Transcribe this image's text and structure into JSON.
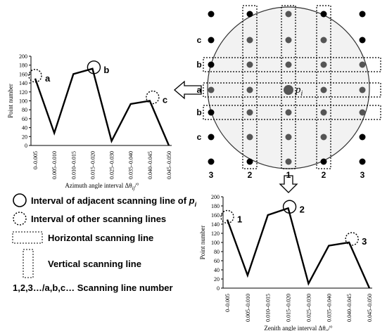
{
  "chart_data": [
    {
      "type": "line",
      "y_label": "Point number",
      "x_label": "Azimuth angle interval Δθ",
      "x_label_sub": "ij",
      "x_label_suffix": "/°",
      "categories": [
        "0–0.005",
        "0.005–0.010",
        "0.010–0.015",
        "0.015–0.020",
        "0.025–0.030",
        "0.035–0.040",
        "0.040–0.045",
        "0.045–0.050"
      ],
      "values": [
        150,
        28,
        160,
        172,
        10,
        93,
        100,
        0
      ],
      "color": "#000000",
      "ylim": [
        0,
        200
      ],
      "yticks": [
        0,
        20,
        40,
        60,
        80,
        100,
        120,
        140,
        160,
        180,
        200
      ],
      "annotations": [
        {
          "text": "a",
          "index": 0,
          "style": "dotted"
        },
        {
          "text": "b",
          "index": 3,
          "style": "solid"
        },
        {
          "text": "c",
          "index": 6,
          "style": "dotted"
        }
      ]
    },
    {
      "type": "line",
      "y_label": "Point number",
      "x_label": "Zenith angle interval Δθ",
      "x_label_sub": "ij",
      "x_label_suffix": "/°",
      "categories": [
        "0–0.005",
        "0.005–0.010",
        "0.010–0.015",
        "0.015–0.020",
        "0.025–0.030",
        "0.035–0.040",
        "0.040–0.045",
        "0.045–0.050"
      ],
      "values": [
        150,
        28,
        160,
        175,
        10,
        93,
        100,
        0
      ],
      "color": "#000000",
      "ylim": [
        0,
        200
      ],
      "yticks": [
        0,
        20,
        40,
        60,
        80,
        100,
        120,
        140,
        160,
        180,
        200
      ],
      "annotations": [
        {
          "text": "1",
          "index": 0,
          "style": "dotted"
        },
        {
          "text": "2",
          "index": 3,
          "style": "solid"
        },
        {
          "text": "3",
          "index": 6,
          "style": "dotted"
        }
      ]
    }
  ],
  "diagram": {
    "row_labels": [
      "c",
      "b",
      "a",
      "b",
      "c"
    ],
    "column_labels": [
      "3",
      "2",
      "1",
      "2",
      "3"
    ],
    "center_label": "p",
    "center_sub": "i"
  },
  "legend": {
    "adjacent": "Interval of adjacent scanning line of",
    "adjacent_symbol": "p",
    "adjacent_sub": "i",
    "other": "Interval of other scanning lines",
    "horizontal": "Horizontal scanning line",
    "vertical": "Vertical scanning line",
    "numbers": "1,2,3…/a,b,c… Scanning line number"
  }
}
